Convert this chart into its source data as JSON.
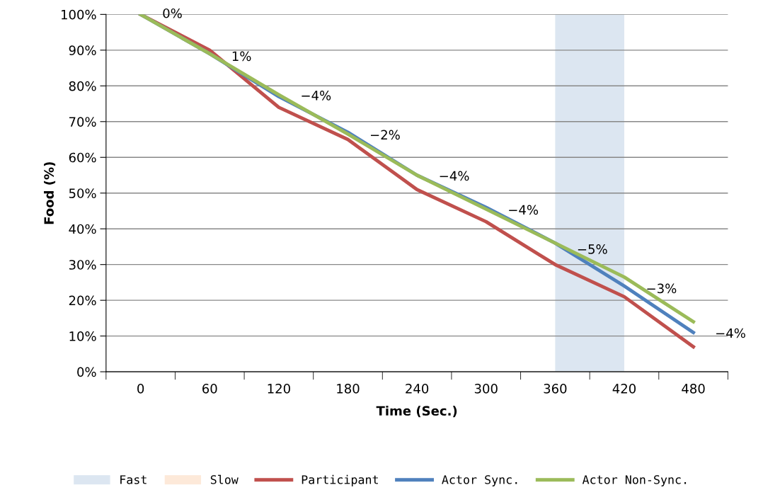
{
  "chart_data": {
    "type": "line",
    "xlabel": "Time (Sec.)",
    "ylabel": "Food (%)",
    "categories": [
      "0",
      "60",
      "120",
      "180",
      "240",
      "300",
      "360",
      "420",
      "480"
    ],
    "ylim": [
      0,
      100
    ],
    "yticks": [
      {
        "value": 0,
        "label": "0%"
      },
      {
        "value": 10,
        "label": "10%"
      },
      {
        "value": 20,
        "label": "20%"
      },
      {
        "value": 30,
        "label": "30%"
      },
      {
        "value": 40,
        "label": "40%"
      },
      {
        "value": 50,
        "label": "50%"
      },
      {
        "value": 60,
        "label": "60%"
      },
      {
        "value": 70,
        "label": "70%"
      },
      {
        "value": 80,
        "label": "80%"
      },
      {
        "value": 90,
        "label": "90%"
      },
      {
        "value": 100,
        "label": "100%"
      }
    ],
    "series": [
      {
        "name": "Slow",
        "type": "bar",
        "color": "#fde9d9",
        "values": [
          null,
          null,
          null,
          null,
          null,
          null,
          null,
          null,
          null
        ]
      },
      {
        "name": "Participant",
        "color": "#c0504d",
        "values": [
          100,
          90,
          74,
          65,
          51,
          42,
          30,
          21,
          7
        ]
      },
      {
        "name": "Actor Sync.",
        "color": "#4f81bd",
        "values": [
          100,
          89,
          77,
          67,
          55,
          46,
          36,
          24,
          11
        ]
      },
      {
        "name": "Actor Non-Sync.",
        "color": "#9bbb59",
        "values": [
          100,
          89,
          77.5,
          66.5,
          55,
          45.5,
          36,
          26.5,
          14
        ]
      }
    ],
    "bands": [
      {
        "axis": "x",
        "from": "360",
        "to": "420",
        "label": "Fast",
        "color": "#dce6f1"
      }
    ],
    "annotations": [
      {
        "text": "0%",
        "x": "0",
        "y": 100
      },
      {
        "text": "1%",
        "x": "60",
        "y": 88
      },
      {
        "text": "−4%",
        "x": "120",
        "y": 77
      },
      {
        "text": "−2%",
        "x": "180",
        "y": 66
      },
      {
        "text": "−4%",
        "x": "240",
        "y": 54.5
      },
      {
        "text": "−4%",
        "x": "300",
        "y": 45
      },
      {
        "text": "−5%",
        "x": "360",
        "y": 34
      },
      {
        "text": "−3%",
        "x": "420",
        "y": 23
      },
      {
        "text": "−4%",
        "x": "480",
        "y": 10.5
      }
    ],
    "grid": "y",
    "legend": "bottom",
    "marker": "none",
    "line_style": "solid"
  }
}
